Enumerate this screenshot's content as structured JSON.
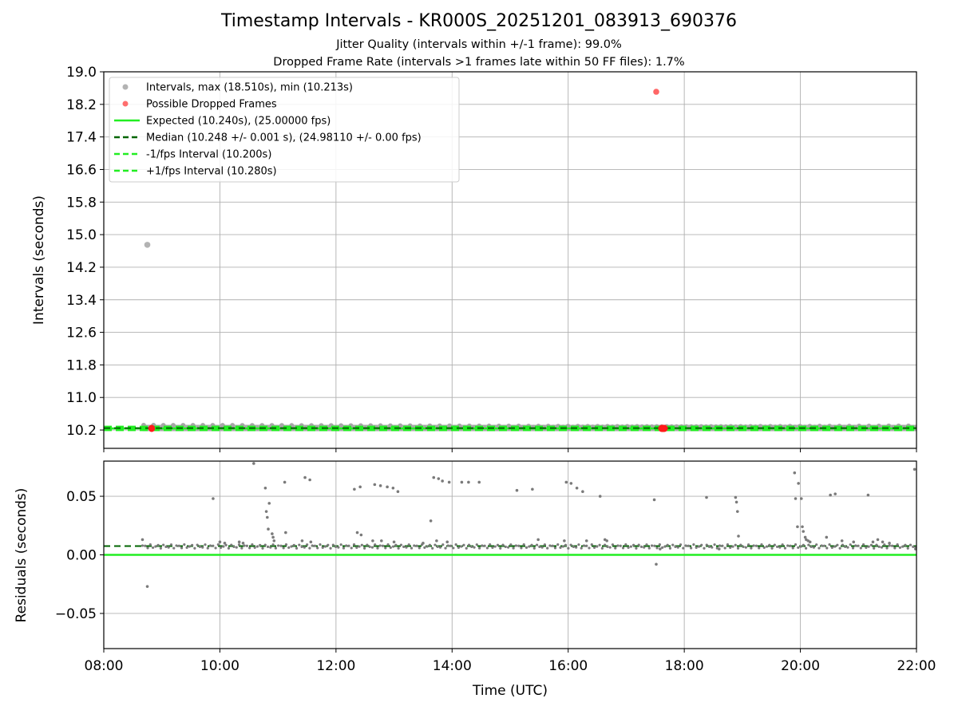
{
  "header": {
    "title": "Timestamp Intervals - KR000S_20251201_083913_690376",
    "subtitle_jitter": "Jitter Quality (intervals within +/-1 frame): 99.0%",
    "subtitle_dropped": "Dropped Frame Rate (intervals >1 frames late within 50 FF files): 1.7%"
  },
  "colors": {
    "intervals": "#a6a6a6",
    "dropped": "#ff5555",
    "expected": "#22ee22",
    "median": "#006400",
    "fps_interval": "#22ee22",
    "residual_points": "#7a7a7a",
    "grid": "#b0b0b0"
  },
  "chart_data": [
    {
      "type": "scatter",
      "panel": "intervals",
      "ylabel": "Intervals (seconds)",
      "ylim": [
        9.75,
        19.0
      ],
      "yticks": [
        "10.2",
        "11.0",
        "11.8",
        "12.6",
        "13.4",
        "14.2",
        "15.0",
        "15.8",
        "16.6",
        "17.4",
        "18.2",
        "19.0"
      ],
      "xlim": [
        "08:00",
        "22:00"
      ],
      "grid": "on",
      "legend_position": "top-left",
      "legend": [
        "Intervals, max (18.510s), min (10.213s)",
        "Possible Dropped Frames",
        "Expected (10.240s), (25.00000 fps)",
        "Median (10.248 +/- 0.001 s), (24.98110 +/- 0.00 fps)",
        "-1/fps Interval (10.200s)",
        "+1/fps Interval (10.280s)"
      ],
      "expected": 10.24,
      "median": 10.248,
      "minus_fps_interval": 10.2,
      "plus_fps_interval": 10.28,
      "outliers": [
        {
          "x": "08:45",
          "y": 14.75,
          "series": "Intervals"
        },
        {
          "x": "17:31",
          "y": 18.51,
          "series": "Possible Dropped Frames"
        }
      ],
      "dropped_clusters": [
        {
          "x_start": "08:46",
          "x_end": "08:53",
          "y": 10.24
        },
        {
          "x_start": "17:33",
          "x_end": "17:43",
          "y": 10.24
        }
      ],
      "coverage": {
        "x_start": "08:40",
        "x_end": "22:00",
        "y": 10.25
      }
    },
    {
      "type": "scatter",
      "panel": "residuals",
      "xlabel": "Time (UTC)",
      "ylabel": "Residuals (seconds)",
      "ylim": [
        -0.08,
        0.08
      ],
      "yticks": [
        "−0.05",
        "0.00",
        "0.05"
      ],
      "xticks": [
        "08:00",
        "10:00",
        "12:00",
        "14:00",
        "16:00",
        "18:00",
        "20:00",
        "22:00"
      ],
      "xlim": [
        "08:00",
        "22:00"
      ],
      "grid": "on",
      "expected": 0.0,
      "median": 0.0075,
      "points": [
        [
          "08:40",
          0.013
        ],
        [
          "08:45",
          -0.027
        ],
        [
          "09:53",
          0.048
        ],
        [
          "10:00",
          0.011
        ],
        [
          "10:05",
          0.01
        ],
        [
          "10:20",
          0.011
        ],
        [
          "10:24",
          0.01
        ],
        [
          "10:35",
          0.078
        ],
        [
          "10:47",
          0.057
        ],
        [
          "10:48",
          0.037
        ],
        [
          "10:49",
          0.032
        ],
        [
          "10:50",
          0.022
        ],
        [
          "10:51",
          0.044
        ],
        [
          "10:54",
          0.018
        ],
        [
          "10:55",
          0.015
        ],
        [
          "10:56",
          0.012
        ],
        [
          "11:07",
          0.062
        ],
        [
          "11:08",
          0.019
        ],
        [
          "11:25",
          0.012
        ],
        [
          "11:28",
          0.066
        ],
        [
          "11:33",
          0.064
        ],
        [
          "11:34",
          0.011
        ],
        [
          "12:19",
          0.056
        ],
        [
          "12:22",
          0.019
        ],
        [
          "12:25",
          0.058
        ],
        [
          "12:26",
          0.017
        ],
        [
          "12:38",
          0.012
        ],
        [
          "12:40",
          0.06
        ],
        [
          "12:46",
          0.059
        ],
        [
          "12:47",
          0.012
        ],
        [
          "12:53",
          0.058
        ],
        [
          "12:59",
          0.057
        ],
        [
          "13:00",
          0.011
        ],
        [
          "13:04",
          0.054
        ],
        [
          "13:30",
          0.01
        ],
        [
          "13:38",
          0.029
        ],
        [
          "13:41",
          0.066
        ],
        [
          "13:44",
          0.012
        ],
        [
          "13:46",
          0.065
        ],
        [
          "13:50",
          0.063
        ],
        [
          "13:55",
          0.011
        ],
        [
          "13:57",
          0.062
        ],
        [
          "14:10",
          0.062
        ],
        [
          "14:17",
          0.062
        ],
        [
          "14:28",
          0.062
        ],
        [
          "15:07",
          0.055
        ],
        [
          "15:23",
          0.056
        ],
        [
          "15:29",
          0.013
        ],
        [
          "15:56",
          0.012
        ],
        [
          "15:58",
          0.062
        ],
        [
          "16:03",
          0.061
        ],
        [
          "16:09",
          0.057
        ],
        [
          "16:15",
          0.054
        ],
        [
          "16:19",
          0.012
        ],
        [
          "16:33",
          0.05
        ],
        [
          "16:38",
          0.013
        ],
        [
          "16:40",
          0.012
        ],
        [
          "17:29",
          0.047
        ],
        [
          "17:31",
          -0.008
        ],
        [
          "17:35",
          0.005
        ],
        [
          "18:23",
          0.049
        ],
        [
          "18:36",
          0.005
        ],
        [
          "18:53",
          0.049
        ],
        [
          "18:54",
          0.045
        ],
        [
          "18:55",
          0.037
        ],
        [
          "18:56",
          0.016
        ],
        [
          "19:54",
          0.07
        ],
        [
          "19:55",
          0.048
        ],
        [
          "19:57",
          0.024
        ],
        [
          "19:58",
          0.061
        ],
        [
          "20:01",
          0.048
        ],
        [
          "20:02",
          0.024
        ],
        [
          "20:03",
          0.02
        ],
        [
          "20:05",
          0.015
        ],
        [
          "20:06",
          0.013
        ],
        [
          "20:08",
          0.012
        ],
        [
          "20:10",
          0.011
        ],
        [
          "20:27",
          0.015
        ],
        [
          "20:31",
          0.051
        ],
        [
          "20:36",
          0.052
        ],
        [
          "20:43",
          0.012
        ],
        [
          "20:55",
          0.011
        ],
        [
          "21:10",
          0.051
        ],
        [
          "21:15",
          0.011
        ],
        [
          "21:20",
          0.013
        ],
        [
          "21:25",
          0.011
        ],
        [
          "21:32",
          0.01
        ],
        [
          "21:58",
          0.073
        ],
        [
          "21:59",
          0.005
        ]
      ]
    }
  ]
}
